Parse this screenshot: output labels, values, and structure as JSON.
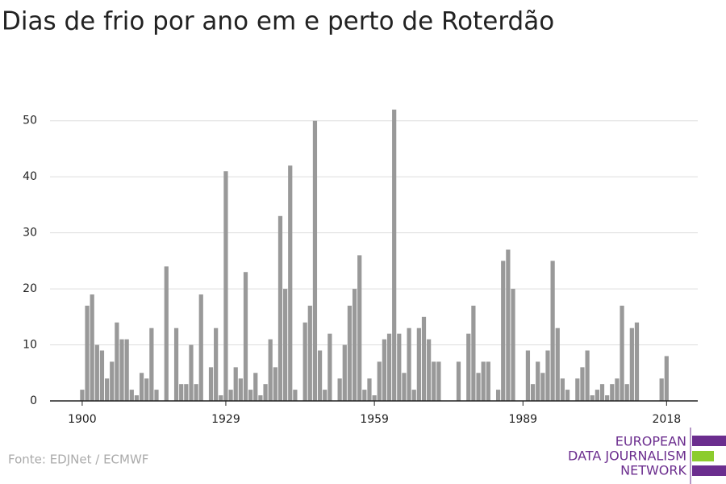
{
  "chart_data": {
    "type": "bar",
    "title": "Dias de frio por ano em e perto de Roterdão",
    "source": "Fonte: EDJNet / ECMWF",
    "logo": [
      "EUROPEAN",
      "DATA JOURNALISM",
      "NETWORK"
    ],
    "x": [
      1900,
      1901,
      1902,
      1903,
      1904,
      1905,
      1906,
      1907,
      1908,
      1909,
      1910,
      1911,
      1912,
      1913,
      1914,
      1915,
      1916,
      1917,
      1918,
      1919,
      1920,
      1921,
      1922,
      1923,
      1924,
      1925,
      1926,
      1927,
      1928,
      1929,
      1930,
      1931,
      1932,
      1933,
      1934,
      1935,
      1936,
      1937,
      1938,
      1939,
      1940,
      1941,
      1942,
      1943,
      1944,
      1945,
      1946,
      1947,
      1948,
      1949,
      1950,
      1951,
      1952,
      1953,
      1954,
      1955,
      1956,
      1957,
      1958,
      1959,
      1960,
      1961,
      1962,
      1963,
      1964,
      1965,
      1966,
      1967,
      1968,
      1969,
      1970,
      1971,
      1972,
      1973,
      1974,
      1975,
      1976,
      1977,
      1978,
      1979,
      1980,
      1981,
      1982,
      1983,
      1984,
      1985,
      1986,
      1987,
      1988,
      1989,
      1990,
      1991,
      1992,
      1993,
      1994,
      1995,
      1996,
      1997,
      1998,
      1999,
      2000,
      2001,
      2002,
      2003,
      2004,
      2005,
      2006,
      2007,
      2008,
      2009,
      2010,
      2011,
      2012,
      2013,
      2014,
      2015,
      2016,
      2017,
      2018
    ],
    "values": [
      2,
      17,
      19,
      10,
      9,
      4,
      7,
      14,
      11,
      11,
      2,
      1,
      5,
      4,
      13,
      2,
      0,
      24,
      0,
      13,
      3,
      3,
      10,
      3,
      19,
      0,
      6,
      13,
      1,
      41,
      2,
      6,
      4,
      23,
      2,
      5,
      1,
      3,
      11,
      6,
      33,
      20,
      42,
      2,
      0,
      14,
      17,
      50,
      9,
      2,
      12,
      0,
      4,
      10,
      17,
      20,
      26,
      2,
      4,
      1,
      7,
      11,
      12,
      52,
      12,
      5,
      13,
      2,
      13,
      15,
      11,
      7,
      7,
      0,
      0,
      0,
      7,
      0,
      12,
      17,
      5,
      7,
      7,
      0,
      2,
      25,
      27,
      20,
      0,
      0,
      9,
      3,
      7,
      5,
      9,
      25,
      13,
      4,
      2,
      0,
      4,
      6,
      9,
      1,
      2,
      3,
      1,
      3,
      4,
      17,
      3,
      13,
      14,
      0,
      0,
      0,
      0,
      4,
      8
    ],
    "color": "#999999",
    "xlim": [
      1893.5,
      2024.3
    ],
    "xticks": [
      1900,
      1929,
      1959,
      1989,
      2018
    ],
    "ylim": [
      0,
      55
    ],
    "yticks": [
      0,
      10,
      20,
      30,
      40,
      50
    ],
    "grid": true
  }
}
